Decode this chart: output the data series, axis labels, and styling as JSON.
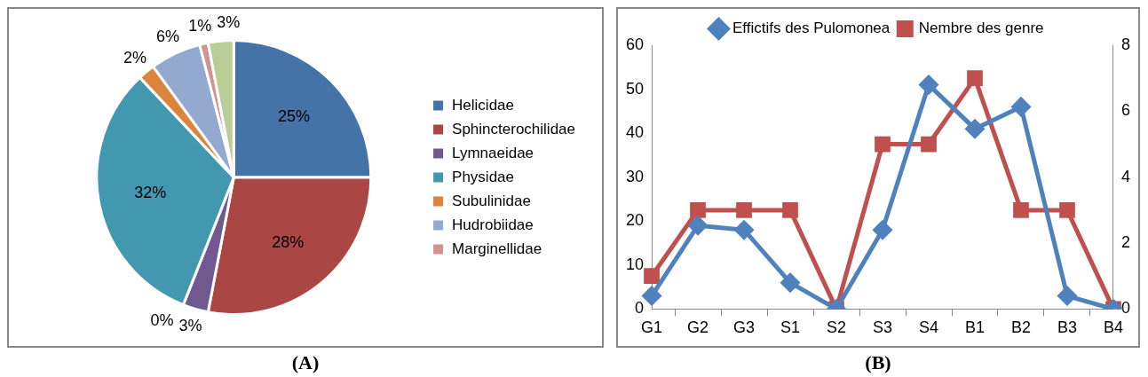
{
  "chart_data": [
    {
      "type": "pie",
      "categories": [
        "Helicidae",
        "Sphincterochilidae",
        "Lymnaeidae",
        null,
        "Physidae",
        "Subulinidae",
        "Hudrobiidae",
        "Marginellidae",
        null
      ],
      "values": [
        25,
        28,
        3,
        0,
        32,
        2,
        6,
        1,
        3
      ],
      "colors": [
        "#4572a7",
        "#aa4643",
        "#71588f",
        "#4bacc6",
        "#4198af",
        "#db843d",
        "#93a9cf",
        "#d19392",
        "#b9cd96"
      ],
      "value_labels": [
        "25%",
        "28%",
        "3%",
        "0%",
        "32%",
        "2%",
        "6%",
        "1%",
        "3%"
      ],
      "legend": "right",
      "annotations": [
        "(A)"
      ]
    },
    {
      "type": "line",
      "categories": [
        "G1",
        "G2",
        "G3",
        "S1",
        "S2",
        "S3",
        "S4",
        "B1",
        "B2",
        "B3",
        "B4"
      ],
      "series": [
        {
          "name": "Effictifs des Pulomonea",
          "color": "#4f81bd",
          "marker": "diamond",
          "values": [
            3,
            19,
            18,
            6,
            0,
            18,
            51,
            41,
            46,
            3,
            0
          ]
        },
        {
          "name": "Nembre des genre",
          "color": "#c0504d",
          "marker": "square",
          "axis": "y2",
          "values": [
            1,
            3,
            3,
            3,
            0,
            5,
            5,
            7,
            3,
            3,
            0
          ]
        }
      ],
      "ylim": [
        0,
        60
      ],
      "yticks": [
        0,
        10,
        20,
        30,
        40,
        50,
        60
      ],
      "y2lim": [
        0,
        8
      ],
      "y2ticks": [
        0,
        2,
        4,
        6,
        8
      ],
      "legend": "top",
      "annotations": [
        "(B)"
      ]
    }
  ]
}
